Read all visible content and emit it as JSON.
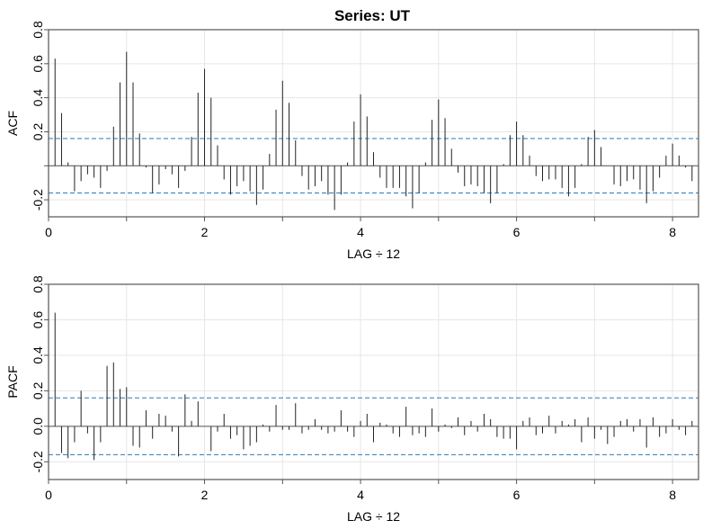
{
  "title": "Series:  UT",
  "colors": {
    "spike": "#222222",
    "conf": "#2a7ab8",
    "grid": "#e6e6e6",
    "zero": "#555555",
    "frame": "#555555"
  },
  "chart_data": [
    {
      "type": "bar",
      "ylabel": "ACF",
      "xlabel": "LAG ÷ 12",
      "xlim": [
        0,
        8.333
      ],
      "ylim": [
        -0.3,
        0.8
      ],
      "xticks": [
        0,
        2,
        4,
        6,
        8
      ],
      "yticks": [
        0.8,
        0.6,
        0.4,
        0.2,
        0.0,
        -0.2
      ],
      "ytick_labels": [
        "0.8",
        "0.6",
        "0.4",
        "0.2",
        "",
        "-0.2"
      ],
      "conf_band": [
        0.16,
        -0.16
      ],
      "grid": true,
      "lag_step": 0.0833333,
      "values": [
        0.63,
        0.31,
        0.02,
        -0.15,
        -0.09,
        -0.05,
        -0.07,
        -0.13,
        -0.03,
        0.23,
        0.49,
        0.67,
        0.49,
        0.19,
        -0.01,
        -0.16,
        -0.11,
        -0.02,
        -0.05,
        -0.13,
        -0.03,
        0.17,
        0.43,
        0.57,
        0.4,
        0.12,
        -0.08,
        -0.17,
        -0.12,
        -0.09,
        -0.15,
        -0.23,
        -0.14,
        0.07,
        0.33,
        0.5,
        0.37,
        0.15,
        -0.06,
        -0.14,
        -0.12,
        -0.09,
        -0.17,
        -0.26,
        -0.17,
        0.02,
        0.26,
        0.42,
        0.29,
        0.08,
        -0.07,
        -0.13,
        -0.13,
        -0.13,
        -0.18,
        -0.25,
        -0.16,
        0.02,
        0.27,
        0.39,
        0.28,
        0.1,
        -0.04,
        -0.12,
        -0.11,
        -0.12,
        -0.16,
        -0.22,
        -0.16,
        0.01,
        0.18,
        0.26,
        0.18,
        0.06,
        -0.06,
        -0.09,
        -0.08,
        -0.08,
        -0.13,
        -0.18,
        -0.13,
        0.01,
        0.17,
        0.21,
        0.11,
        0.0,
        -0.11,
        -0.12,
        -0.09,
        -0.08,
        -0.14,
        -0.22,
        -0.15,
        -0.07,
        0.06,
        0.13,
        0.06,
        -0.01,
        -0.09,
        -0.11
      ]
    },
    {
      "type": "bar",
      "ylabel": "PACF",
      "xlabel": "LAG ÷ 12",
      "xlim": [
        0,
        8.333
      ],
      "ylim": [
        -0.3,
        0.8
      ],
      "xticks": [
        0,
        2,
        4,
        6,
        8
      ],
      "yticks": [
        0.8,
        0.6,
        0.4,
        0.2,
        0.0,
        -0.2
      ],
      "ytick_labels": [
        "0.8",
        "0.6",
        "0.4",
        "0.2",
        "0.0",
        "-0.2"
      ],
      "conf_band": [
        0.16,
        -0.16
      ],
      "grid": true,
      "lag_step": 0.0833333,
      "values": [
        0.64,
        -0.15,
        -0.18,
        -0.09,
        0.2,
        -0.04,
        -0.19,
        -0.09,
        0.34,
        0.36,
        0.21,
        0.22,
        -0.11,
        -0.12,
        0.09,
        -0.07,
        0.07,
        0.06,
        -0.03,
        -0.17,
        0.18,
        0.03,
        0.14,
        0.0,
        -0.14,
        -0.03,
        0.07,
        -0.07,
        -0.05,
        -0.13,
        -0.11,
        -0.09,
        0.01,
        -0.03,
        0.12,
        -0.02,
        -0.02,
        0.13,
        -0.04,
        -0.02,
        0.04,
        -0.02,
        -0.04,
        -0.03,
        0.09,
        -0.03,
        -0.06,
        0.03,
        0.07,
        -0.09,
        0.02,
        0.01,
        -0.04,
        -0.06,
        0.11,
        -0.05,
        -0.04,
        -0.06,
        0.1,
        -0.03,
        0.01,
        -0.01,
        0.05,
        -0.05,
        0.03,
        -0.03,
        0.07,
        0.04,
        -0.06,
        -0.07,
        -0.07,
        -0.13,
        0.03,
        0.05,
        -0.05,
        -0.04,
        0.06,
        -0.04,
        0.03,
        0.01,
        0.04,
        -0.09,
        0.05,
        -0.07,
        -0.02,
        -0.1,
        -0.06,
        0.03,
        0.04,
        -0.03,
        0.04,
        -0.12,
        0.05,
        -0.06,
        -0.04,
        0.04,
        -0.02,
        -0.05,
        0.03,
        -0.05
      ]
    }
  ]
}
